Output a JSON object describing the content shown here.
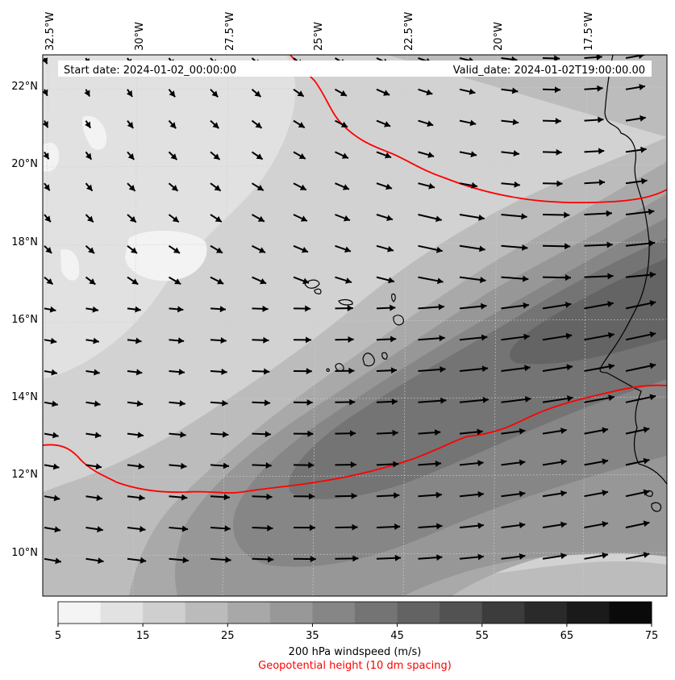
{
  "header": {
    "start_date": "Start date: 2024-01-02_00:00:00",
    "valid_date": "Valid_date: 2024-01-02T19:00:00.00"
  },
  "map": {
    "lon_labels": [
      "32.5°W",
      "30°W",
      "27.5°W",
      "25°W",
      "22.5°W",
      "20°W",
      "17.5°W"
    ],
    "lat_labels": [
      "22°N",
      "20°N",
      "18°N",
      "16°N",
      "14°N",
      "12°N",
      "10°N"
    ],
    "geopotential_color": "#ff0000",
    "coastline_color": "#000000",
    "wind_arrow_color": "#000000"
  },
  "colorbar": {
    "ticks": [
      "5",
      "15",
      "25",
      "35",
      "45",
      "55",
      "65",
      "75"
    ],
    "levels": [
      5,
      10,
      15,
      20,
      25,
      30,
      35,
      40,
      45,
      50,
      55,
      60,
      65,
      70,
      75
    ],
    "colors": [
      "#f4f4f4",
      "#e2e2e2",
      "#cfcfcf",
      "#bbbbbb",
      "#a8a8a8",
      "#989898",
      "#868686",
      "#747474",
      "#636363",
      "#525252",
      "#3c3c3c",
      "#2a2a2a",
      "#1a1a1a",
      "#0a0a0a"
    ],
    "title": "200 hPa windspeed (m/s)",
    "subtitle": "Geopotential height (10 dm spacing)"
  }
}
